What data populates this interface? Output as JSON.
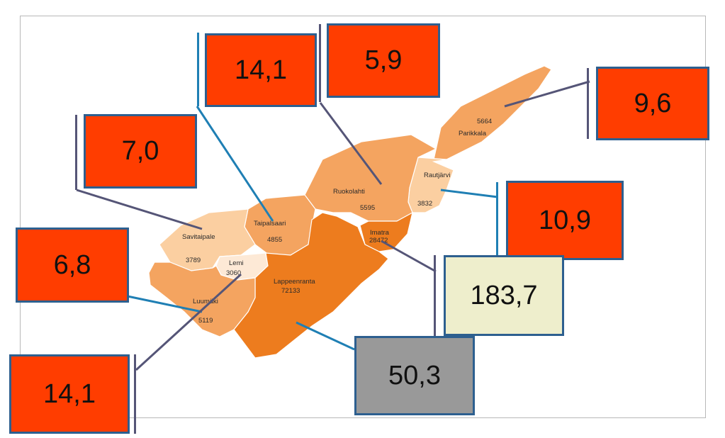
{
  "colors": {
    "box_red": "#ff3d00",
    "box_highlight": "#eeeecc",
    "box_gray": "#999999",
    "border_blue": "#2d5f8f",
    "leader_blue": "#1f7fb4",
    "leader_slate": "#555577",
    "region_dark": "#ed7c1e",
    "region_mid": "#f4a460",
    "region_light": "#fbcfa1"
  },
  "regions": [
    {
      "id": "parikkala",
      "name": "Parikkala",
      "value": "5664"
    },
    {
      "id": "rautjarvi",
      "name": "Rautjärvi",
      "value": "3832"
    },
    {
      "id": "ruokolahti",
      "name": "Ruokolahti",
      "value": "5595"
    },
    {
      "id": "imatra",
      "name": "Imatra",
      "value": "28472"
    },
    {
      "id": "taipalsaari",
      "name": "Taipalsaari",
      "value": "4855"
    },
    {
      "id": "savitaipale",
      "name": "Savitaipale",
      "value": "3789"
    },
    {
      "id": "lemi",
      "name": "Lemi",
      "value": "3060"
    },
    {
      "id": "lappeenranta",
      "name": "Lappeenranta",
      "value": "72133"
    },
    {
      "id": "luumaki",
      "name": "Luumäki",
      "value": "5119"
    }
  ],
  "callouts": [
    {
      "id": "taipalsaari",
      "label": "14,1",
      "style": "red"
    },
    {
      "id": "ruokolahti",
      "label": "5,9",
      "style": "red"
    },
    {
      "id": "parikkala",
      "label": "9,6",
      "style": "red"
    },
    {
      "id": "savitaipale",
      "label": "7,0",
      "style": "red"
    },
    {
      "id": "rautjarvi",
      "label": "10,9",
      "style": "red"
    },
    {
      "id": "luumaki",
      "label": "6,8",
      "style": "red"
    },
    {
      "id": "imatra",
      "label": "183,7",
      "style": "highlight"
    },
    {
      "id": "lappeenranta",
      "label": "50,3",
      "style": "gray"
    },
    {
      "id": "lemi",
      "label": "14,1",
      "style": "red"
    }
  ]
}
